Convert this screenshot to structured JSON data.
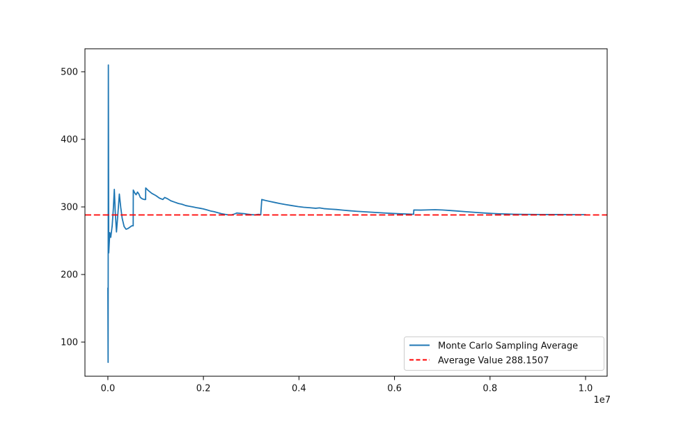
{
  "figure": {
    "background_color": "#ffffff",
    "axes_edge_color": "#000000"
  },
  "chart_data": {
    "type": "line",
    "title": "",
    "xlabel": "",
    "ylabel": "",
    "grid": false,
    "x_axis": {
      "offset_label": "1e7",
      "tick_values_1e7": [
        0.0,
        0.2,
        0.4,
        0.6,
        0.8,
        1.0
      ],
      "tick_labels": [
        "0.0",
        "0.2",
        "0.4",
        "0.6",
        "0.8",
        "1.0"
      ],
      "xlim_1e7": [
        -0.048,
        1.0452
      ]
    },
    "y_axis": {
      "tick_values": [
        100,
        200,
        300,
        400,
        500
      ],
      "tick_labels": [
        "100",
        "200",
        "300",
        "400",
        "500"
      ],
      "ylim": [
        49.5,
        534.0
      ]
    },
    "series": [
      {
        "name": "Monte Carlo Sampling Average",
        "color": "#1f77b4",
        "style": "solid",
        "x_1e7": [
          0.0,
          0.0005,
          0.001,
          0.0018,
          0.004,
          0.006,
          0.009,
          0.0115,
          0.0135,
          0.0155,
          0.018,
          0.021,
          0.024,
          0.027,
          0.03,
          0.034,
          0.038,
          0.042,
          0.046,
          0.05,
          0.053,
          0.0532,
          0.056,
          0.059,
          0.062,
          0.065,
          0.068,
          0.072,
          0.076,
          0.079,
          0.0792,
          0.085,
          0.092,
          0.1,
          0.108,
          0.115,
          0.119,
          0.125,
          0.132,
          0.14,
          0.148,
          0.155,
          0.163,
          0.17,
          0.178,
          0.185,
          0.193,
          0.2,
          0.208,
          0.215,
          0.222,
          0.23,
          0.238,
          0.245,
          0.252,
          0.258,
          0.265,
          0.27,
          0.278,
          0.285,
          0.292,
          0.3,
          0.308,
          0.315,
          0.32,
          0.3222,
          0.33,
          0.34,
          0.35,
          0.36,
          0.372,
          0.385,
          0.398,
          0.41,
          0.422,
          0.435,
          0.443,
          0.452,
          0.465,
          0.478,
          0.492,
          0.505,
          0.52,
          0.535,
          0.55,
          0.565,
          0.58,
          0.595,
          0.61,
          0.625,
          0.638,
          0.64,
          0.6405,
          0.655,
          0.67,
          0.685,
          0.7,
          0.715,
          0.73,
          0.745,
          0.76,
          0.775,
          0.79,
          0.805,
          0.82,
          0.835,
          0.85,
          0.865,
          0.88,
          0.9,
          0.92,
          0.94,
          0.96,
          0.98,
          1.0
        ],
        "y": [
          180,
          70,
          510,
          232,
          262,
          255,
          272,
          298,
          326,
          292,
          263,
          290,
          319,
          299,
          283,
          271,
          267,
          268,
          270,
          272,
          272,
          325,
          321,
          318,
          322,
          319,
          314,
          312,
          311,
          311,
          328,
          324,
          320,
          317,
          313,
          311,
          314,
          312,
          309,
          307,
          305,
          304,
          302,
          301,
          300,
          299,
          298,
          297,
          295.5,
          294,
          293,
          291.5,
          290,
          289,
          288.3,
          288,
          289.5,
          291,
          290.5,
          290,
          289.3,
          288.6,
          288.2,
          289,
          288.4,
          311,
          309.5,
          308,
          306.5,
          305,
          303.5,
          302,
          300.5,
          299.5,
          298.8,
          298,
          298.6,
          297.5,
          296.8,
          296.2,
          295.2,
          294.4,
          293.6,
          292.9,
          292.3,
          291.6,
          291,
          290.4,
          289.9,
          289.5,
          289.2,
          289.1,
          295.5,
          295.3,
          295.6,
          295.9,
          295.5,
          294.8,
          294,
          293.2,
          292.4,
          291.6,
          290.9,
          290.3,
          289.8,
          289.5,
          289.2,
          289,
          288.9,
          288.8,
          288.7,
          288.7,
          288.6,
          288.5,
          288.5
        ]
      },
      {
        "name": "Average Value 288.1507",
        "color": "#ff0000",
        "style": "dashed",
        "value": 288.1507
      }
    ],
    "legend": {
      "position": "lower right",
      "entries": [
        {
          "label": "Monte Carlo Sampling Average",
          "color": "#1f77b4",
          "style": "solid"
        },
        {
          "label": "Average Value 288.1507",
          "color": "#ff0000",
          "style": "dashed"
        }
      ]
    }
  }
}
